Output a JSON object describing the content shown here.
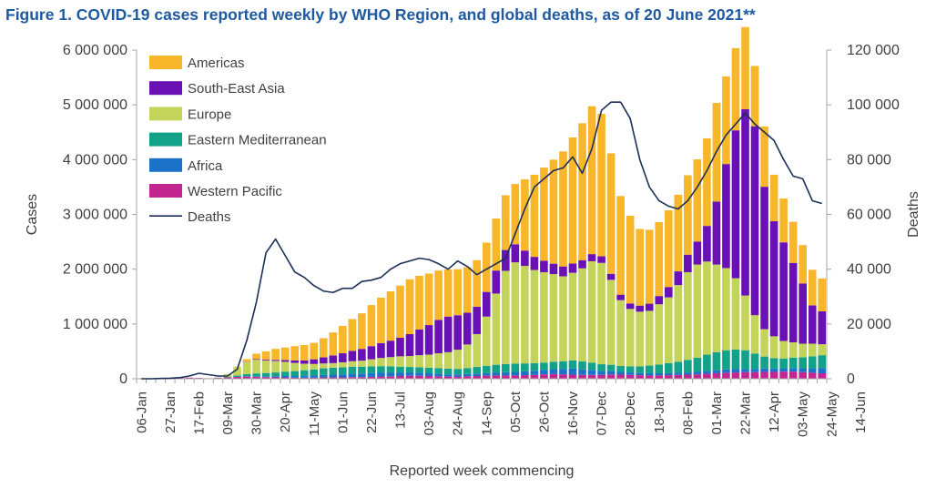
{
  "chart_data": {
    "type": "bar",
    "title": "Figure 1. COVID-19 cases reported weekly by WHO Region, and global deaths, as of 20 June 2021**",
    "xlabel": "Reported week commencing",
    "ylabel": "Cases",
    "y2label": "Deaths",
    "stacked": true,
    "ylim": [
      0,
      6000000
    ],
    "y2lim": [
      0,
      120000
    ],
    "yticks": [
      0,
      1000000,
      2000000,
      3000000,
      4000000,
      5000000,
      6000000
    ],
    "yticklabels": [
      "0",
      "1 000 000",
      "2 000 000",
      "3 000 000",
      "4 000 000",
      "5 000 000",
      "6 000 000"
    ],
    "y2ticks": [
      0,
      20000,
      40000,
      60000,
      80000,
      100000,
      120000
    ],
    "y2ticklabels": [
      "0",
      "20 000",
      "40 000",
      "60 000",
      "80 000",
      "100 000",
      "120 000"
    ],
    "x_tick_labels": [
      "06-Jan",
      "27-Jan",
      "17-Feb",
      "09-Mar",
      "30-Mar",
      "20-Apr",
      "11-May",
      "01-Jun",
      "22-Jun",
      "13-Jul",
      "03-Aug",
      "24-Aug",
      "14-Sep",
      "05-Oct",
      "26-Oct",
      "16-Nov",
      "07-Dec",
      "28-Dec",
      "18-Jan",
      "08-Feb",
      "01-Mar",
      "22-Mar",
      "12-Apr",
      "03-May",
      "24-May",
      "14-Jun"
    ],
    "x_tick_every": 3,
    "grid": false,
    "legend_position": "top-left",
    "series": [
      {
        "name": "Western Pacific",
        "color": "#c4268f",
        "values": [
          0,
          0,
          5000,
          15000,
          30000,
          20000,
          15000,
          10000,
          15000,
          25000,
          35000,
          40000,
          35000,
          30000,
          25000,
          25000,
          20000,
          20000,
          20000,
          25000,
          25000,
          25000,
          30000,
          30000,
          35000,
          40000,
          45000,
          50000,
          55000,
          55000,
          50000,
          45000,
          40000,
          40000,
          45000,
          50000,
          55000,
          60000,
          60000,
          60000,
          65000,
          70000,
          80000,
          85000,
          80000,
          75000,
          70000,
          70000,
          70000,
          80000,
          75000,
          70000,
          65000,
          60000,
          60000,
          65000,
          70000,
          75000,
          80000,
          90000,
          100000,
          110000,
          115000,
          120000,
          120000,
          125000,
          125000,
          130000,
          130000,
          120000,
          110000,
          100000
        ]
      },
      {
        "name": "Africa",
        "color": "#1c72c9",
        "values": [
          0,
          0,
          0,
          0,
          0,
          0,
          0,
          0,
          1000,
          2000,
          5000,
          8000,
          12000,
          15000,
          20000,
          25000,
          30000,
          35000,
          40000,
          45000,
          50000,
          55000,
          60000,
          65000,
          70000,
          75000,
          70000,
          65000,
          60000,
          55000,
          50000,
          45000,
          40000,
          40000,
          40000,
          45000,
          50000,
          55000,
          60000,
          65000,
          70000,
          75000,
          80000,
          90000,
          100000,
          110000,
          100000,
          90000,
          70000,
          60000,
          50000,
          45000,
          40000,
          40000,
          40000,
          40000,
          40000,
          40000,
          45000,
          50000,
          55000,
          60000,
          60000,
          60000,
          60000,
          60000,
          60000,
          60000,
          65000,
          70000,
          80000,
          90000
        ]
      },
      {
        "name": "Eastern Mediterranean",
        "color": "#12a189",
        "values": [
          0,
          0,
          0,
          0,
          0,
          0,
          0,
          0,
          5000,
          10000,
          20000,
          35000,
          50000,
          60000,
          70000,
          80000,
          90000,
          100000,
          110000,
          120000,
          125000,
          130000,
          130000,
          125000,
          120000,
          115000,
          110000,
          105000,
          100000,
          100000,
          100000,
          105000,
          105000,
          100000,
          110000,
          120000,
          130000,
          140000,
          150000,
          150000,
          145000,
          140000,
          135000,
          135000,
          140000,
          150000,
          145000,
          135000,
          125000,
          115000,
          110000,
          110000,
          120000,
          140000,
          160000,
          180000,
          200000,
          230000,
          260000,
          300000,
          330000,
          350000,
          360000,
          340000,
          280000,
          220000,
          190000,
          180000,
          190000,
          200000,
          220000,
          240000
        ]
      },
      {
        "name": "Europe",
        "color": "#c4d45b",
        "values": [
          0,
          0,
          0,
          0,
          0,
          0,
          0,
          0,
          5000,
          50000,
          150000,
          230000,
          250000,
          230000,
          210000,
          180000,
          150000,
          120000,
          100000,
          90000,
          85000,
          90000,
          100000,
          110000,
          130000,
          150000,
          170000,
          190000,
          200000,
          220000,
          240000,
          270000,
          300000,
          350000,
          430000,
          600000,
          900000,
          1300000,
          1700000,
          1850000,
          1780000,
          1700000,
          1650000,
          1600000,
          1550000,
          1600000,
          1700000,
          1850000,
          1850000,
          1550000,
          1200000,
          1050000,
          1000000,
          1000000,
          1100000,
          1200000,
          1400000,
          1600000,
          1700000,
          1700000,
          1600000,
          1500000,
          1300000,
          1000000,
          700000,
          500000,
          400000,
          320000,
          280000,
          250000,
          230000,
          200000
        ]
      },
      {
        "name": "South-East Asia",
        "color": "#6a11b6",
        "values": [
          0,
          0,
          0,
          0,
          0,
          0,
          0,
          0,
          0,
          0,
          1000,
          5000,
          10000,
          15000,
          20000,
          30000,
          45000,
          60000,
          85000,
          110000,
          140000,
          165000,
          190000,
          215000,
          240000,
          270000,
          300000,
          340000,
          400000,
          470000,
          540000,
          610000,
          650000,
          630000,
          580000,
          500000,
          450000,
          420000,
          380000,
          330000,
          280000,
          240000,
          210000,
          190000,
          180000,
          170000,
          150000,
          130000,
          120000,
          110000,
          100000,
          100000,
          110000,
          130000,
          150000,
          190000,
          250000,
          320000,
          420000,
          650000,
          1150000,
          1900000,
          2700000,
          3400000,
          3450000,
          2600000,
          2100000,
          1800000,
          1450000,
          1100000,
          700000,
          600000
        ]
      },
      {
        "name": "Americas",
        "color": "#f8b62a",
        "values": [
          0,
          0,
          0,
          0,
          0,
          0,
          0,
          0,
          0,
          0,
          10000,
          40000,
          100000,
          150000,
          200000,
          230000,
          260000,
          280000,
          300000,
          350000,
          420000,
          500000,
          580000,
          650000,
          750000,
          830000,
          900000,
          950000,
          1000000,
          980000,
          940000,
          900000,
          860000,
          840000,
          830000,
          850000,
          900000,
          950000,
          1000000,
          1100000,
          1300000,
          1500000,
          1700000,
          1900000,
          2100000,
          2300000,
          2500000,
          2700000,
          2600000,
          2200000,
          1800000,
          1600000,
          1400000,
          1350000,
          1350000,
          1400000,
          1400000,
          1450000,
          1500000,
          1600000,
          1800000,
          1600000,
          1500000,
          1500000,
          1100000,
          1100000,
          850000,
          800000,
          750000,
          700000,
          650000,
          600000
        ]
      }
    ],
    "deaths": {
      "name": "Deaths",
      "color": "#1b2f57",
      "values": [
        0,
        0,
        100,
        200,
        400,
        1000,
        2000,
        1500,
        1000,
        1000,
        3500,
        14000,
        28000,
        46000,
        51000,
        45000,
        39000,
        37000,
        34000,
        32000,
        31500,
        33000,
        33000,
        35500,
        36000,
        37000,
        40000,
        42000,
        43000,
        44000,
        43500,
        42000,
        40000,
        43000,
        41000,
        38000,
        40000,
        42000,
        44000,
        53000,
        62000,
        70000,
        73000,
        76000,
        77000,
        81000,
        75000,
        84000,
        98000,
        101000,
        101000,
        95000,
        80000,
        70000,
        65000,
        63000,
        62000,
        65000,
        70000,
        76000,
        83000,
        89000,
        93000,
        97000,
        93000,
        90000,
        87000,
        80000,
        74000,
        73000,
        65000,
        64000
      ]
    }
  }
}
